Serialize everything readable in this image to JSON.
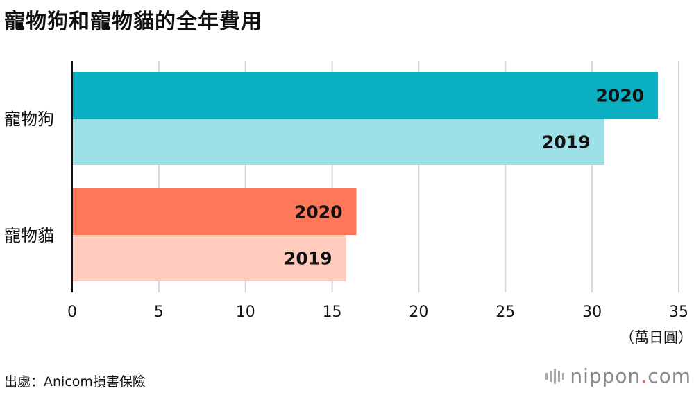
{
  "title": "寵物狗和寵物貓的全年費用",
  "unit_label": "（萬日圓）",
  "source": "出處：Anicom損害保險",
  "brand": {
    "name": "nippon",
    "dot": ".",
    "tld": "com"
  },
  "colors": {
    "dog_2020": "#0aafc2",
    "dog_2019": "#9ddfe7",
    "cat_2020": "#ff7759",
    "cat_2019": "#ffcbbd",
    "grid": "#d6d6d6",
    "axis": "#111111"
  },
  "chart_data": {
    "type": "bar",
    "orientation": "horizontal",
    "title": "寵物狗和寵物貓的全年費用",
    "xlabel": "（萬日圓）",
    "ylabel": "",
    "xlim": [
      0,
      35
    ],
    "xticks": [
      0,
      5,
      10,
      15,
      20,
      25,
      30,
      35
    ],
    "grid": true,
    "categories": [
      "寵物狗",
      "寵物貓"
    ],
    "bars": [
      {
        "category": "寵物狗",
        "label": "2020",
        "value": 33.8,
        "color_key": "dog_2020"
      },
      {
        "category": "寵物狗",
        "label": "2019",
        "value": 30.7,
        "color_key": "dog_2019"
      },
      {
        "category": "寵物貓",
        "label": "2020",
        "value": 16.4,
        "color_key": "cat_2020"
      },
      {
        "category": "寵物貓",
        "label": "2019",
        "value": 15.8,
        "color_key": "cat_2019"
      }
    ]
  }
}
